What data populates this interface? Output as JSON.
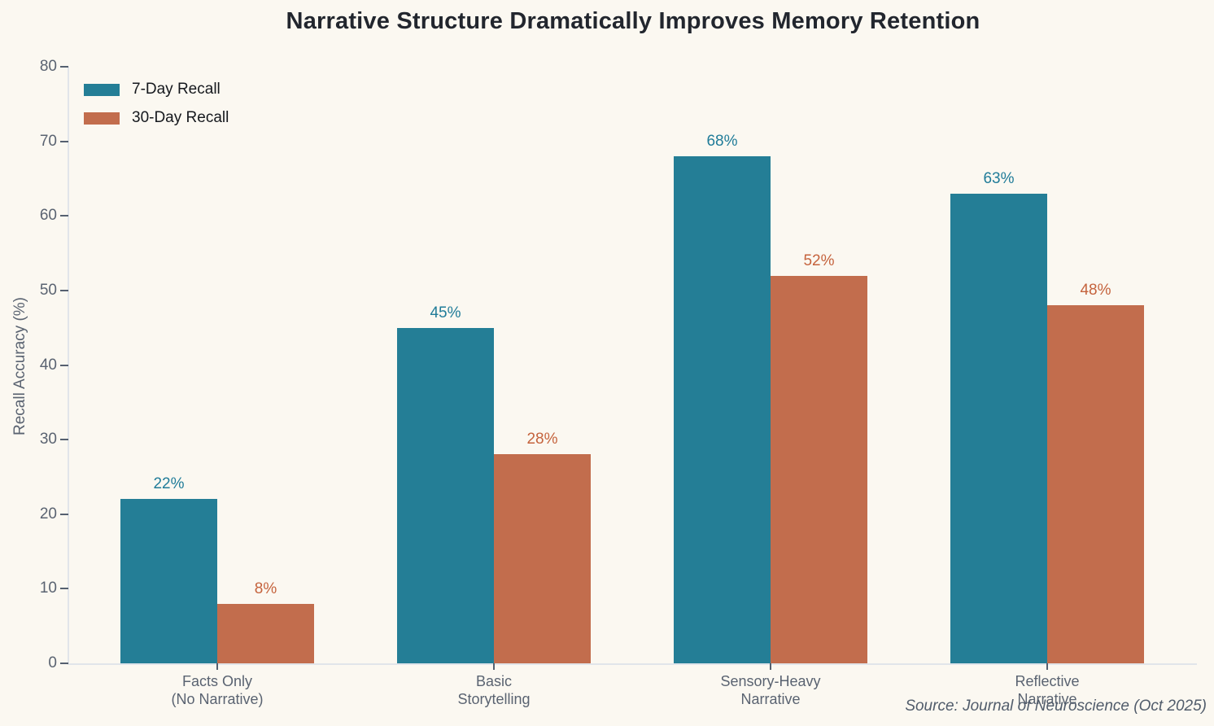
{
  "title": "Narrative Structure Dramatically Improves Memory Retention",
  "source_note": "Source: Journal of Neuroscience (Oct 2025)",
  "legend": {
    "position": "upper-left",
    "items": [
      {
        "label": "7-Day Recall",
        "color": "#247e96"
      },
      {
        "label": "30-Day Recall",
        "color": "#c26d4d"
      }
    ]
  },
  "chart_data": {
    "type": "bar",
    "title": "Narrative Structure Dramatically Improves Memory Retention",
    "categories": [
      "Facts Only\n(No Narrative)",
      "Basic\nStorytelling",
      "Sensory-Heavy\nNarrative",
      "Reflective\nNarrative"
    ],
    "series": [
      {
        "name": "7-Day Recall",
        "color": "#247e96",
        "label_color": "#207c99",
        "values": [
          22,
          45,
          68,
          63
        ]
      },
      {
        "name": "30-Day Recall",
        "color": "#c26d4d",
        "label_color": "#c5633d",
        "values": [
          8,
          28,
          52,
          48
        ]
      }
    ],
    "value_suffix": "%",
    "xlabel": "",
    "ylabel": "Recall Accuracy (%)",
    "ylim": [
      0,
      80
    ],
    "yticks": [
      0,
      10,
      20,
      30,
      40,
      50,
      60,
      70,
      80
    ],
    "grid": false,
    "background": "#fbf8f1"
  }
}
